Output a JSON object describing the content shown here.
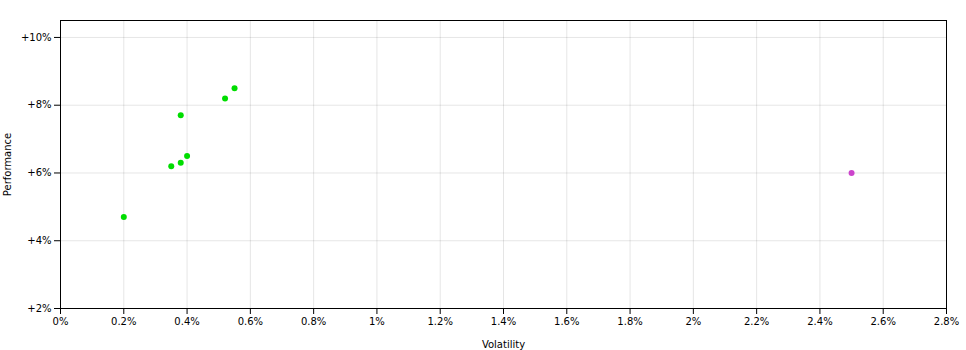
{
  "chart_data": {
    "type": "scatter",
    "xlabel": "Volatility",
    "ylabel": "Performance",
    "series": [
      {
        "color": "#00dd00",
        "x": [
          0.002,
          0.0035,
          0.0038,
          0.004,
          0.0038,
          0.0052,
          0.0055
        ],
        "values": [
          0.047,
          0.062,
          0.063,
          0.065,
          0.077,
          0.082,
          0.085
        ]
      },
      {
        "color": "#cc44cc",
        "x": [
          0.025
        ],
        "values": [
          0.06
        ]
      }
    ],
    "xlim": [
      0.0,
      0.028
    ],
    "ylim": [
      0.02,
      0.105
    ],
    "xticks": [
      {
        "value": 0.0,
        "label": "0%"
      },
      {
        "value": 0.002,
        "label": "0.2%"
      },
      {
        "value": 0.004,
        "label": "0.4%"
      },
      {
        "value": 0.006,
        "label": "0.6%"
      },
      {
        "value": 0.008,
        "label": "0.8%"
      },
      {
        "value": 0.01,
        "label": "1%"
      },
      {
        "value": 0.012,
        "label": "1.2%"
      },
      {
        "value": 0.014,
        "label": "1.4%"
      },
      {
        "value": 0.016,
        "label": "1.6%"
      },
      {
        "value": 0.018,
        "label": "1.8%"
      },
      {
        "value": 0.02,
        "label": "2%"
      },
      {
        "value": 0.022,
        "label": "2.2%"
      },
      {
        "value": 0.024,
        "label": "2.4%"
      },
      {
        "value": 0.026,
        "label": "2.6%"
      },
      {
        "value": 0.028,
        "label": "2.8%"
      }
    ],
    "yticks": [
      {
        "value": 0.02,
        "label": "+2%"
      },
      {
        "value": 0.04,
        "label": "+4%"
      },
      {
        "value": 0.06,
        "label": "+6%"
      },
      {
        "value": 0.08,
        "label": "+8%"
      },
      {
        "value": 0.1,
        "label": "+10%"
      }
    ],
    "grid": true
  }
}
